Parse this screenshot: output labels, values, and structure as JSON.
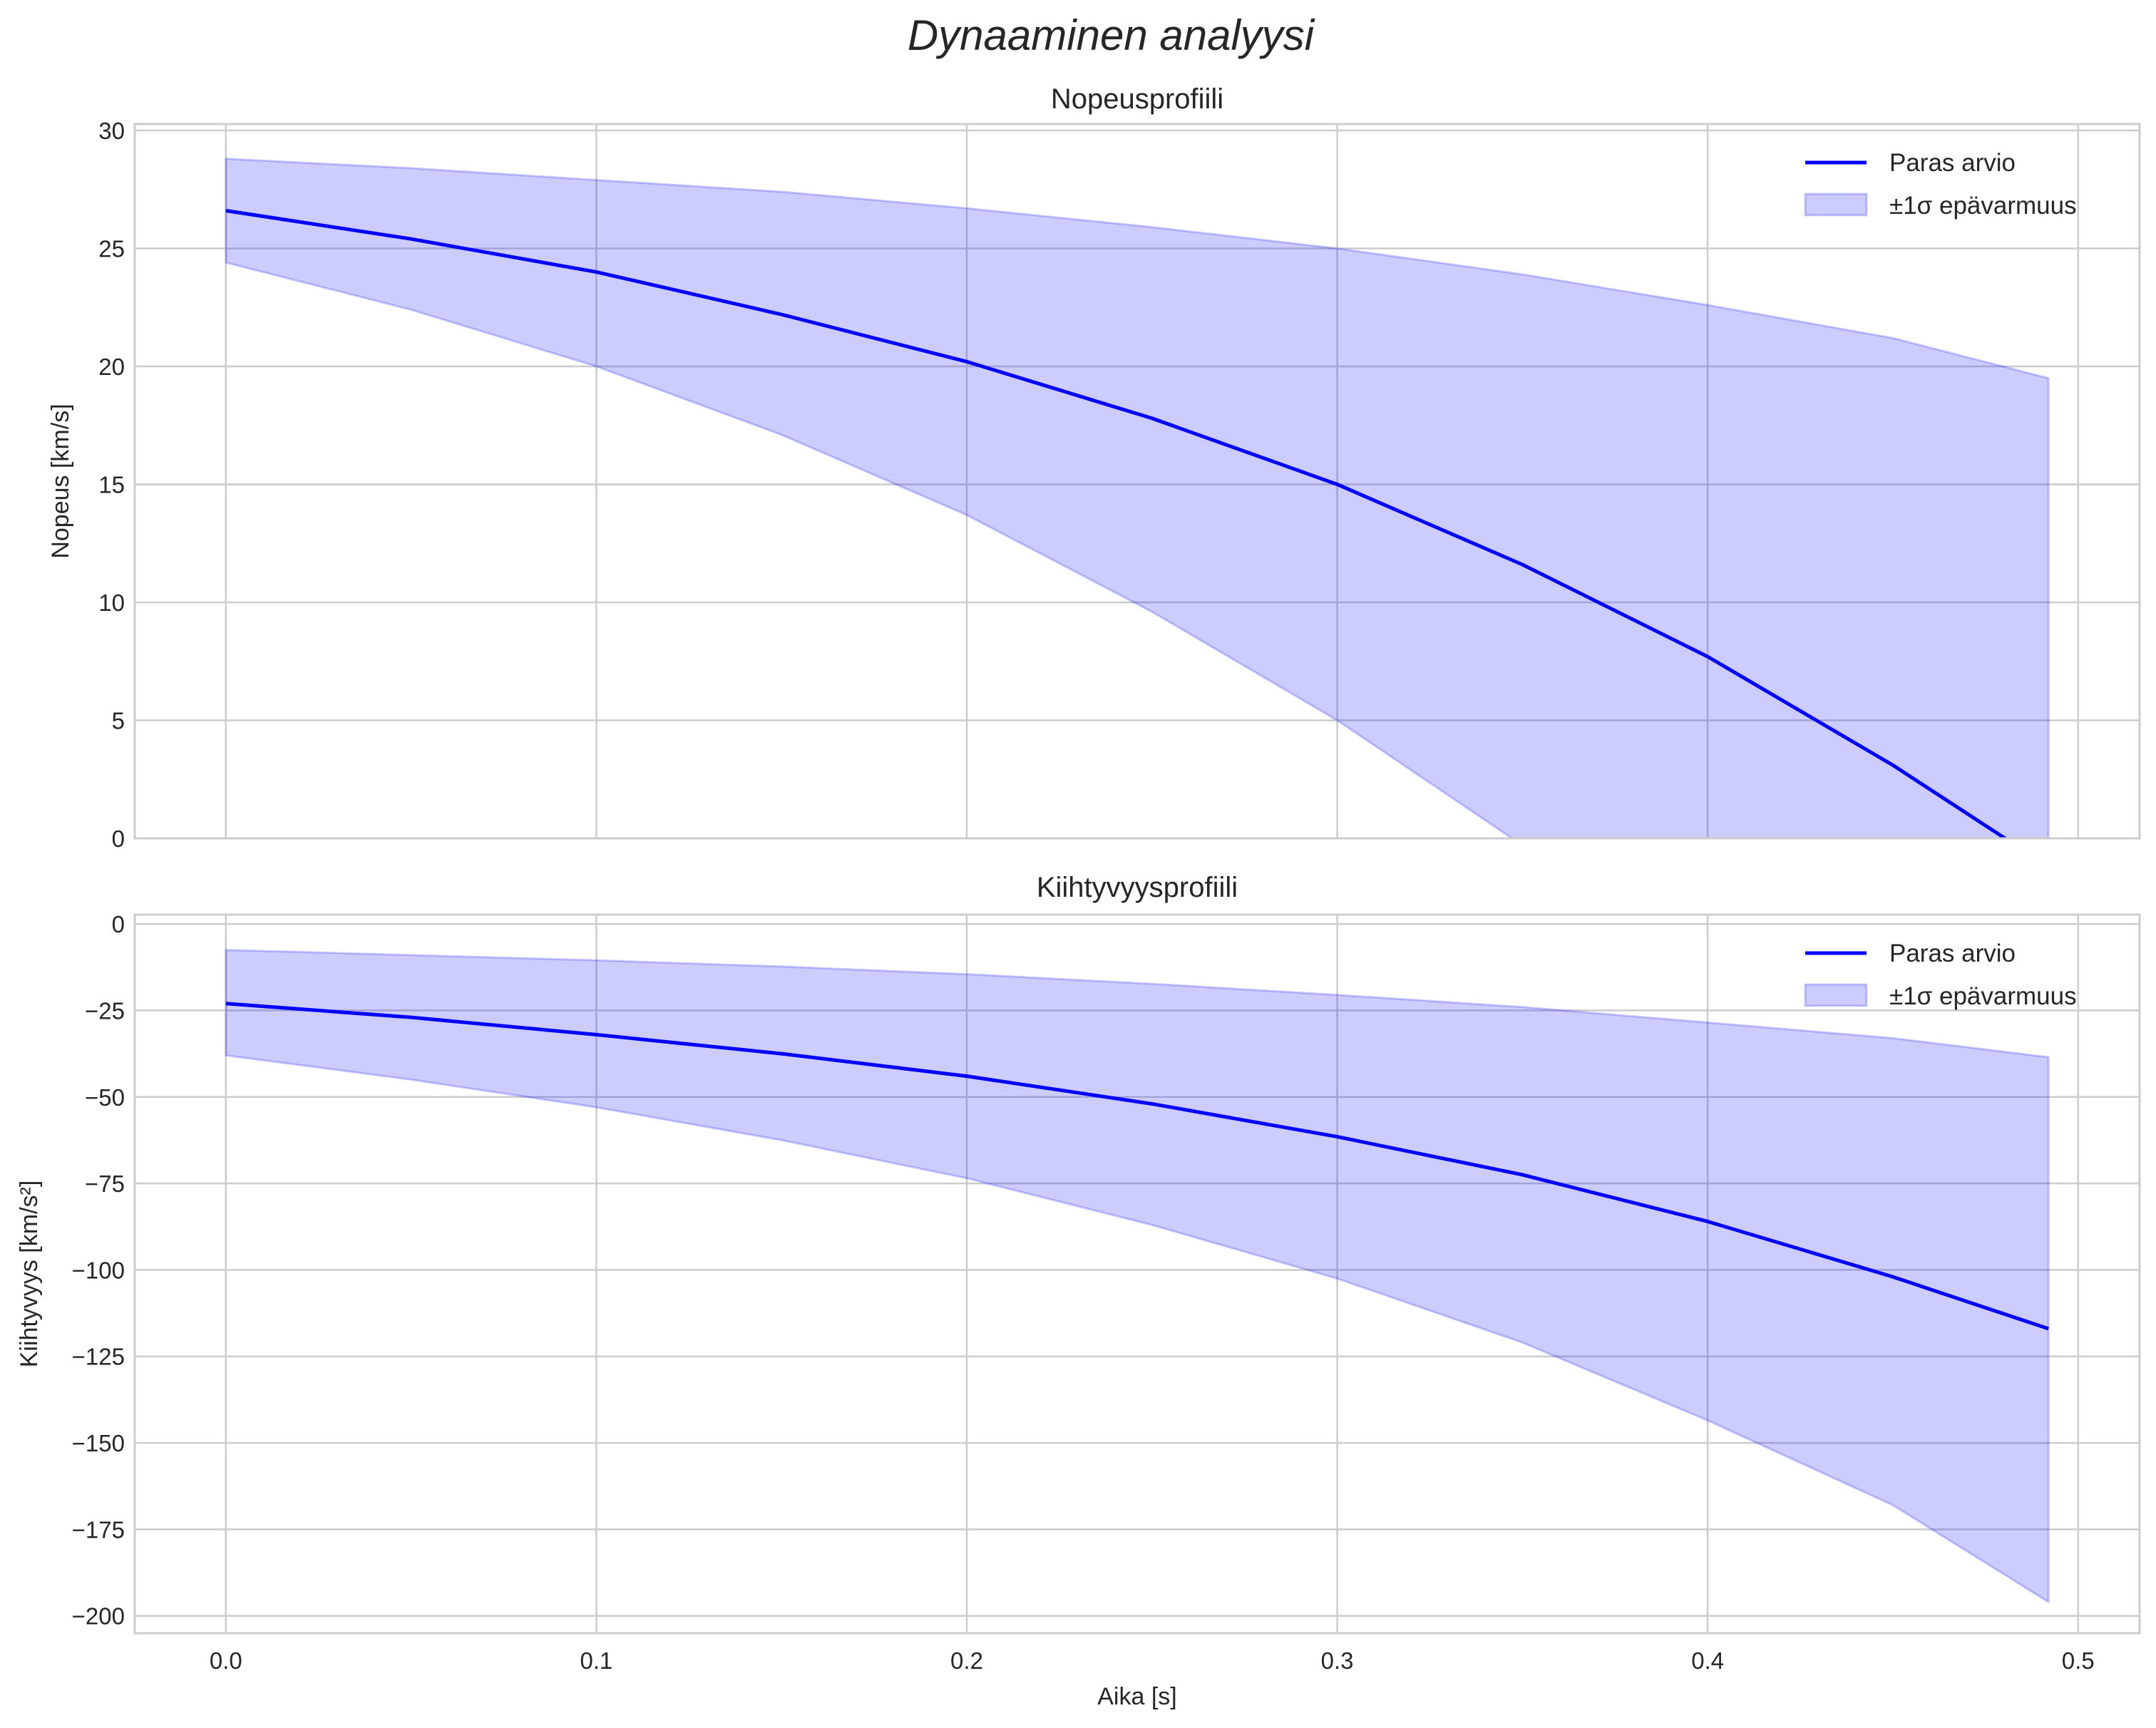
{
  "chart_data": [
    {
      "type": "line",
      "suptitle": "Dynaaminen analyysi",
      "title": "Nopeusprofiili",
      "xlabel": "",
      "ylabel": "Nopeus [km/s]",
      "xlim": [
        -0.0246,
        0.5166
      ],
      "ylim": [
        0,
        30.27
      ],
      "xticks": [
        0.0,
        0.1,
        0.2,
        0.3,
        0.4,
        0.5
      ],
      "xtick_labels": [],
      "yticks": [
        0,
        5,
        10,
        15,
        20,
        25,
        30
      ],
      "ytick_labels": [
        "0",
        "5",
        "10",
        "15",
        "20",
        "25",
        "30"
      ],
      "grid": true,
      "legend_position": "top-right",
      "x": [
        0,
        0.05,
        0.1,
        0.15,
        0.2,
        0.25,
        0.3,
        0.35,
        0.4,
        0.45,
        0.492
      ],
      "series": [
        {
          "name": "Paras arvio",
          "kind": "line",
          "color": "#0000ff",
          "values": [
            26.6,
            25.4,
            24.0,
            22.2,
            20.2,
            17.8,
            15.0,
            11.6,
            7.7,
            3.1,
            -1.2
          ]
        },
        {
          "name": "±1σ epävarmuus",
          "kind": "band",
          "color": "#0000ff",
          "upper": [
            28.8,
            28.4,
            27.9,
            27.4,
            26.7,
            25.9,
            25.0,
            23.9,
            22.6,
            21.2,
            19.5
          ],
          "lower": [
            24.4,
            22.4,
            20.0,
            17.1,
            13.7,
            9.6,
            5.0,
            -0.3,
            -6.1,
            -12.6,
            -18.5
          ]
        }
      ]
    },
    {
      "type": "line",
      "title": "Kiihtyvyysprofiili",
      "xlabel": "Aika [s]",
      "ylabel": "Kiihtyvyys [km/s²]",
      "xlim": [
        -0.0246,
        0.5166
      ],
      "ylim": [
        -205,
        2.7
      ],
      "xticks": [
        0.0,
        0.1,
        0.2,
        0.3,
        0.4,
        0.5
      ],
      "xtick_labels": [
        "0.0",
        "0.1",
        "0.2",
        "0.3",
        "0.4",
        "0.5"
      ],
      "yticks": [
        0,
        -25,
        -50,
        -75,
        -100,
        -125,
        -150,
        -175,
        -200
      ],
      "ytick_labels": [
        "0",
        "−25",
        "−50",
        "−75",
        "−100",
        "−125",
        "−150",
        "−175",
        "−200"
      ],
      "grid": true,
      "legend_position": "top-right",
      "x": [
        0,
        0.05,
        0.1,
        0.15,
        0.2,
        0.25,
        0.3,
        0.35,
        0.4,
        0.45,
        0.492
      ],
      "series": [
        {
          "name": "Paras arvio",
          "kind": "line",
          "color": "#0000ff",
          "values": [
            -23,
            -27,
            -32,
            -37.5,
            -44,
            -52,
            -61.5,
            -72.5,
            -86,
            -102,
            -117
          ]
        },
        {
          "name": "±1σ epävarmuus",
          "kind": "band",
          "color": "#0000ff",
          "upper": [
            -7.5,
            -9,
            -10.5,
            -12.3,
            -14.5,
            -17.3,
            -20.5,
            -24,
            -28.5,
            -33,
            -38.5
          ],
          "lower": [
            -38,
            -45,
            -53,
            -62.5,
            -73.5,
            -87,
            -102.5,
            -121,
            -143.5,
            -168,
            -196
          ]
        }
      ]
    }
  ]
}
